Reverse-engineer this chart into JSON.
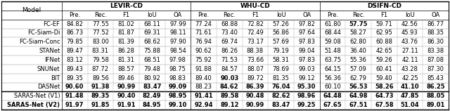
{
  "group_headers": [
    "LEVIR-CD",
    "WHU-CD",
    "DSIFN-CD"
  ],
  "col_headers": [
    "Pre.",
    "Rec.",
    "F1",
    "IoU",
    "OA"
  ],
  "row_labels": [
    "Model",
    "FC-EF",
    "FC-Siam-Di",
    "FC-Siam-Conc",
    "STANet",
    "IFNet",
    "SNUNet",
    "BIT",
    "DASNet",
    "SARAS-Net (V1)",
    "SARAS-Net (V2)"
  ],
  "data": [
    [
      "84.82",
      "77.55",
      "81.02",
      "68.11",
      "97.99",
      "77.24",
      "68.88",
      "72.82",
      "57.26",
      "97.82",
      "61.80",
      "57.75",
      "59.71",
      "42.56",
      "86.77"
    ],
    [
      "86.73",
      "77.52",
      "81.87",
      "69.31",
      "98.11",
      "71.61",
      "73.40",
      "72.49",
      "56.86",
      "97.64",
      "68.44",
      "58.27",
      "62.95",
      "45.93",
      "88.35"
    ],
    [
      "79.85",
      "83.00",
      "81.39",
      "68.62",
      "97.90",
      "76.94",
      "69.74",
      "73.17",
      "57.69",
      "97.83",
      "59.08",
      "62.80",
      "60.88",
      "43.76",
      "86.30"
    ],
    [
      "89.47",
      "83.31",
      "86.28",
      "75.88",
      "98.54",
      "90.62",
      "86.26",
      "88.38",
      "79.19",
      "99.04",
      "51.48",
      "36.40",
      "42.65",
      "27.11",
      "83.38"
    ],
    [
      "83.12",
      "79.58",
      "81.31",
      "68.51",
      "97.98",
      "75.92",
      "71.53",
      "73.66",
      "58.31",
      "97.83",
      "63.75",
      "55.36",
      "59.26",
      "42.11",
      "87.08"
    ],
    [
      "89.43",
      "87.72",
      "88.57",
      "79.48",
      "98.75",
      "91.88",
      "84.57",
      "88.07",
      "78.69",
      "99.03",
      "64.15",
      "57.09",
      "60.41",
      "43.28",
      "87.30"
    ],
    [
      "89.35",
      "89.56",
      "89.46",
      "80.92",
      "98.83",
      "89.40",
      "90.03",
      "89.72",
      "81.35",
      "99.12",
      "56.36",
      "62.79",
      "59.40",
      "42.25",
      "85.43"
    ],
    [
      "90.60",
      "91.38",
      "90.99",
      "83.47",
      "99.09",
      "88.23",
      "84.62",
      "86.39",
      "76.04",
      "95.30",
      "60.10",
      "56.53",
      "58.26",
      "41.10",
      "86.25"
    ],
    [
      "91.48",
      "89.35",
      "90.40",
      "82.49",
      "98.95",
      "91.41",
      "89.58",
      "90.48",
      "82.62",
      "98.96",
      "64.48",
      "64.98",
      "64.73",
      "47.85",
      "88.05"
    ],
    [
      "91.97",
      "91.85",
      "91.91",
      "84.95",
      "99.10",
      "92.94",
      "89.12",
      "90.99",
      "83.47",
      "99.25",
      "67.65",
      "67.51",
      "67.58",
      "51.04",
      "89.01"
    ]
  ],
  "bold_map": {
    "2": [
      11
    ],
    "8": [
      6
    ],
    "9": [
      0,
      1,
      2,
      3,
      4,
      6,
      7,
      8,
      9,
      11,
      12,
      13,
      14
    ],
    "10": [
      0,
      1,
      2,
      3,
      4,
      5,
      6,
      7,
      8,
      9,
      10,
      11,
      12,
      13,
      14
    ]
  },
  "font_size": 6.0,
  "header_font_size": 6.5
}
